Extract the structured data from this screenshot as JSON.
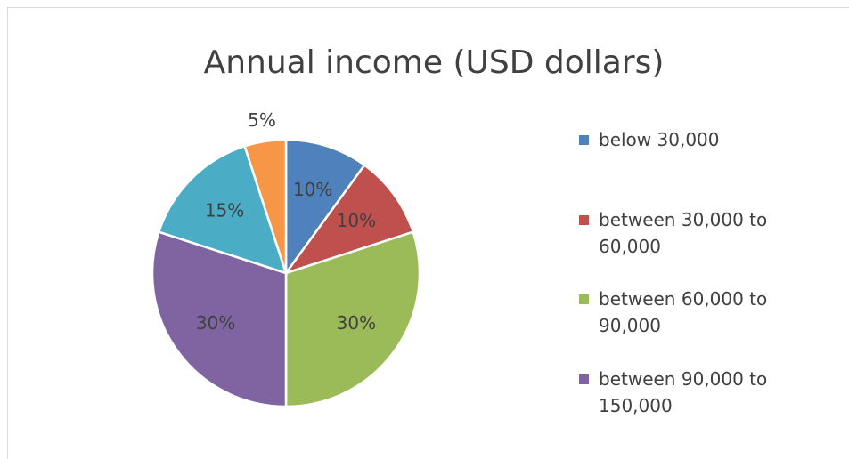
{
  "chart_data": {
    "type": "pie",
    "title": "Annual income (USD dollars)",
    "categories": [
      "below 30,000",
      "between 30,000 to 60,000",
      "between 60,000 to 90,000",
      "between 90,000 to 150,000",
      null,
      null
    ],
    "values": [
      10,
      10,
      30,
      30,
      15,
      5
    ],
    "value_labels": [
      "10%",
      "10%",
      "30%",
      "30%",
      "15%",
      "5%"
    ],
    "colors": [
      "#4f81bd",
      "#c0504d",
      "#9bbb59",
      "#8064a2",
      "#4bacc6",
      "#f79646"
    ],
    "legend": "right"
  }
}
